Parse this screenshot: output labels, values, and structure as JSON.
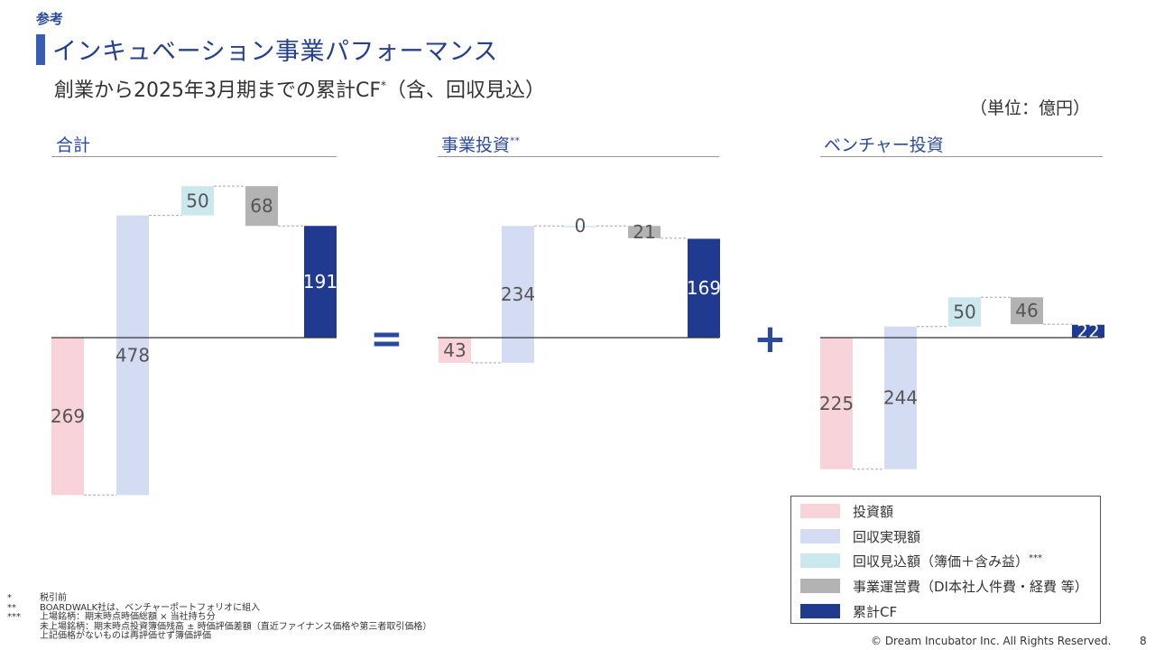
{
  "header": {
    "tag": "参考",
    "title": "インキュベーション事業パフォーマンス",
    "subtitle": "創業から2025年3月期までの累計CF",
    "subtitle_mark": "*",
    "subtitle_suffix": "（含、回収見込）",
    "unit": "（単位：億円）"
  },
  "panels": {
    "total_title": "合計",
    "business_title": "事業投資",
    "business_mark": "**",
    "venture_title": "ベンチャー投資"
  },
  "operators": {
    "equals": "=",
    "plus": "+"
  },
  "colors": {
    "investment": "#f9d3da",
    "recovery_realized": "#d3dcf2",
    "recovery_expected": "#cbe8ee",
    "operating_cost": "#b3b3b3",
    "cumulative_cf": "#1f3a8f"
  },
  "chart_data": [
    {
      "type": "waterfall",
      "title": "合計",
      "steps": [
        {
          "category": "投資額",
          "value": -269,
          "label": "269"
        },
        {
          "category": "回収実現額",
          "value": 478,
          "label": "478"
        },
        {
          "category": "回収見込額",
          "value": 50,
          "label": "50"
        },
        {
          "category": "事業運営費",
          "value": -68,
          "label": "68"
        },
        {
          "category": "累計CF",
          "value": 191,
          "label": "191",
          "total": true
        }
      ]
    },
    {
      "type": "waterfall",
      "title": "事業投資",
      "steps": [
        {
          "category": "投資額",
          "value": -43,
          "label": "43"
        },
        {
          "category": "回収実現額",
          "value": 234,
          "label": "234"
        },
        {
          "category": "回収見込額",
          "value": 0,
          "label": "0"
        },
        {
          "category": "事業運営費",
          "value": -21,
          "label": "21"
        },
        {
          "category": "累計CF",
          "value": 169,
          "label": "169",
          "total": true
        }
      ]
    },
    {
      "type": "waterfall",
      "title": "ベンチャー投資",
      "steps": [
        {
          "category": "投資額",
          "value": -225,
          "label": "225"
        },
        {
          "category": "回収実現額",
          "value": 244,
          "label": "244"
        },
        {
          "category": "回収見込額",
          "value": 50,
          "label": "50"
        },
        {
          "category": "事業運営費",
          "value": -46,
          "label": "46"
        },
        {
          "category": "累計CF",
          "value": 22,
          "label": "22",
          "total": true
        }
      ]
    }
  ],
  "legend": {
    "items": [
      {
        "label": "投資額",
        "color": "#f9d3da"
      },
      {
        "label": "回収実現額",
        "color": "#d3dcf2"
      },
      {
        "label": "回収見込額（簿価＋含み益）",
        "mark": "***",
        "color": "#cbe8ee"
      },
      {
        "label": "事業運営費（DI本社人件費・経費 等）",
        "color": "#b3b3b3"
      },
      {
        "label": "累計CF",
        "color": "#1f3a8f"
      }
    ]
  },
  "footnotes": [
    {
      "mark": "*",
      "text": "税引前"
    },
    {
      "mark": "**",
      "text": "BOARDWALK社は、ベンチャーポートフォリオに組入"
    },
    {
      "mark": "***",
      "text": "上場銘柄：期末時点時価総額 × 当社持ち分"
    },
    {
      "mark": "",
      "text": "未上場銘柄：期末時点投資簿価残高 ± 時価評価差額（直近ファイナンス価格や第三者取引価格）"
    },
    {
      "mark": "",
      "text": "上記価格がないものは再評価せず簿価評価"
    }
  ],
  "footer": {
    "copyright": "© Dream Incubator Inc. All Rights Reserved.",
    "page": "8"
  }
}
